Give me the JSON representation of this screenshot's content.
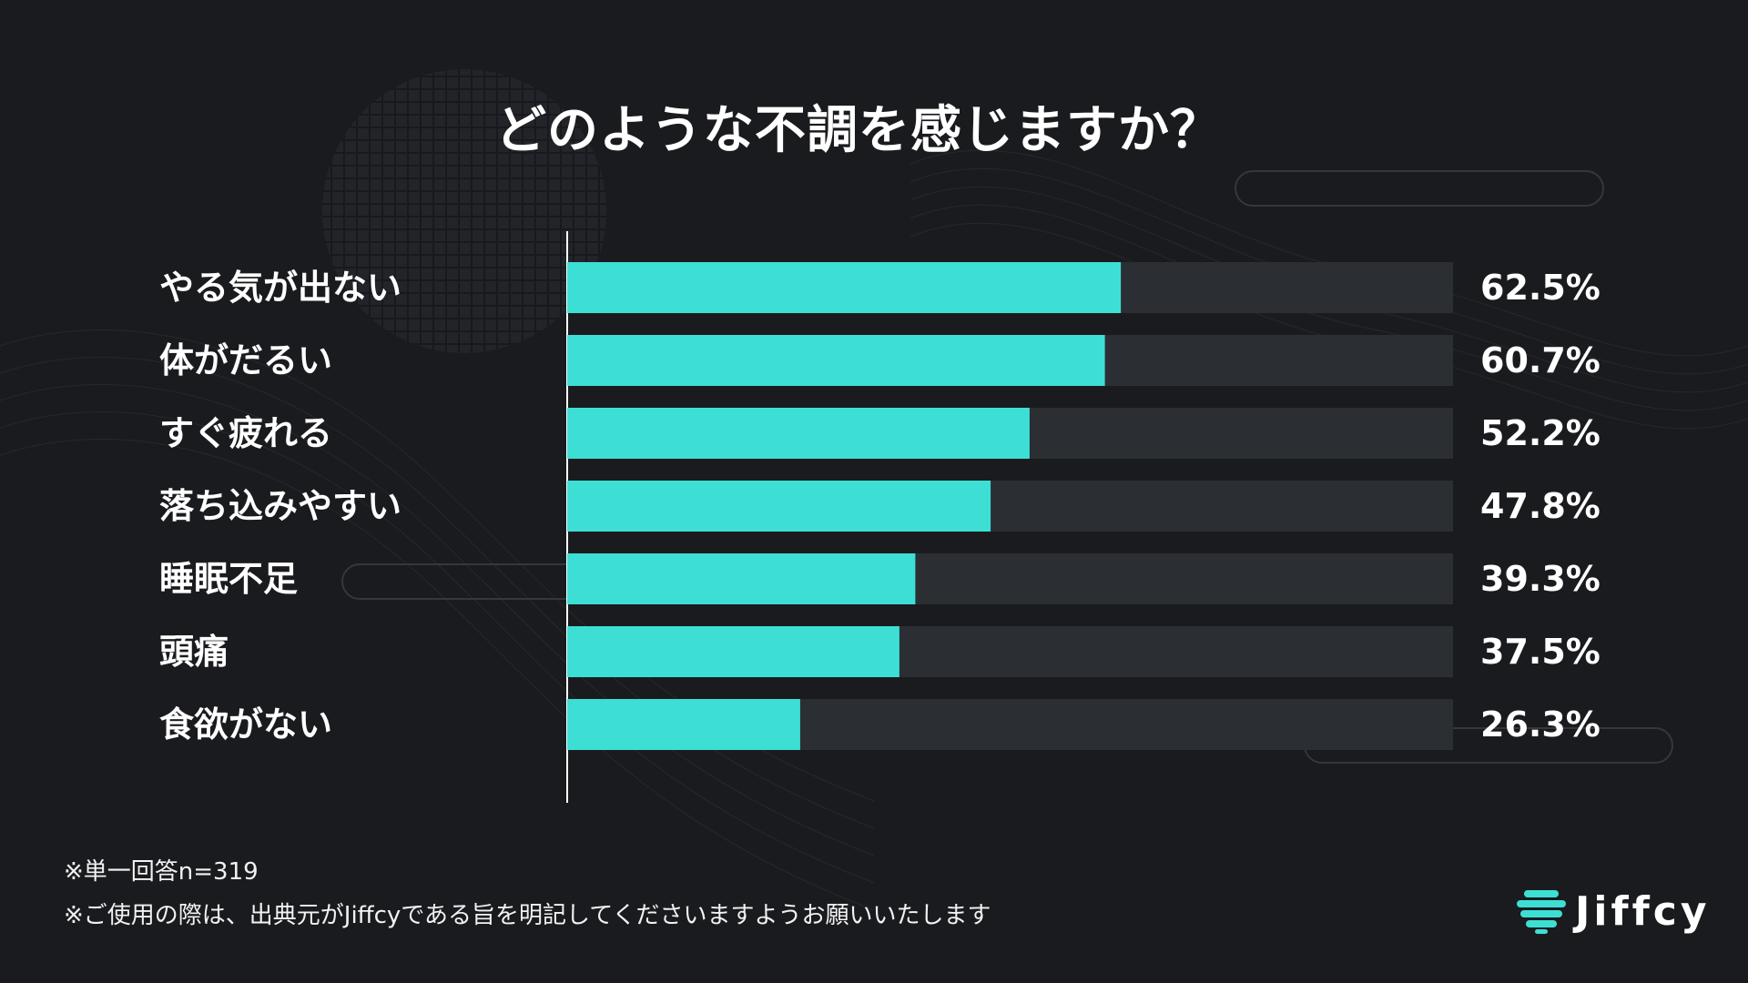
{
  "title": "どのような不調を感じますか？",
  "colors": {
    "background": "#1a1b1e",
    "bar_fill": "#3ddfd5",
    "bar_track": "#2b2e33",
    "text": "#ffffff"
  },
  "chart_data": {
    "type": "bar",
    "orientation": "horizontal",
    "title": "どのような不調を感じますか？",
    "categories": [
      "やる気が出ない",
      "体がだるい",
      "すぐ疲れる",
      "落ち込みやすい",
      "睡眠不足",
      "頭痛",
      "食欲がない"
    ],
    "values": [
      62.5,
      60.7,
      52.2,
      47.8,
      39.3,
      37.5,
      26.3
    ],
    "value_labels": [
      "62.5%",
      "60.7%",
      "52.2%",
      "47.8%",
      "39.3%",
      "37.5%",
      "26.3%"
    ],
    "unit": "%",
    "xlim": [
      0,
      100
    ],
    "grid": false,
    "legend": "none"
  },
  "footnotes": {
    "sample": "※単一回答n=319",
    "usage": "※ご使用の際は、出典元がJiffcyである旨を明記してくださいますようお願いいたします"
  },
  "logo": {
    "text": "Jiffcy",
    "icon": "jiffcy-stack-icon"
  }
}
